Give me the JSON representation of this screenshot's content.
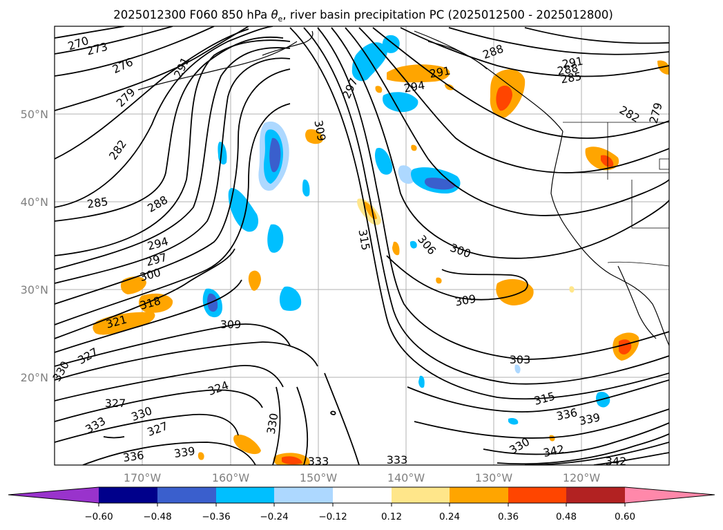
{
  "title": "2025012300 F060 850 hPa θe, river basin precipitation PC (2025012500 - 2025012800)",
  "title_parts": {
    "prefix": "2025012300 F060 850 hPa ",
    "theta": "θ",
    "sub": "e",
    "suffix": ", river basin precipitation PC (2025012500 - 2025012800)"
  },
  "lat_labels": [
    "50°N",
    "40°N",
    "30°N",
    "20°N"
  ],
  "lon_labels": [
    "170°W",
    "160°W",
    "150°W",
    "140°W",
    "130°W",
    "120°W"
  ],
  "colorbar": {
    "ticks": [
      "−0.60",
      "−0.48",
      "−0.36",
      "−0.24",
      "−0.12",
      "0.12",
      "0.24",
      "0.36",
      "0.48",
      "0.60"
    ],
    "colors": {
      "under": "#9933cc",
      "bins": [
        "#00008b",
        "#3a5fcd",
        "#00bfff",
        "#add8ff",
        "#ffffff",
        "#ffe68a",
        "#ffa500",
        "#ff4500",
        "#b22222"
      ],
      "over": "#ff88aa"
    }
  },
  "contour_labels": [
    {
      "text": "270"
    },
    {
      "text": "273"
    },
    {
      "text": "276"
    },
    {
      "text": "279"
    },
    {
      "text": "291"
    },
    {
      "text": "282"
    },
    {
      "text": "285"
    },
    {
      "text": "288"
    },
    {
      "text": "294"
    },
    {
      "text": "297"
    },
    {
      "text": "300"
    },
    {
      "text": "318"
    },
    {
      "text": "321"
    },
    {
      "text": "327"
    },
    {
      "text": "330"
    },
    {
      "text": "309"
    },
    {
      "text": "327"
    },
    {
      "text": "333"
    },
    {
      "text": "330"
    },
    {
      "text": "327"
    },
    {
      "text": "336"
    },
    {
      "text": "339"
    },
    {
      "text": "324"
    },
    {
      "text": "330"
    },
    {
      "text": "333"
    },
    {
      "text": "309"
    },
    {
      "text": "297"
    },
    {
      "text": "294"
    },
    {
      "text": "291"
    },
    {
      "text": "288"
    },
    {
      "text": "291"
    },
    {
      "text": "288"
    },
    {
      "text": "285"
    },
    {
      "text": "282"
    },
    {
      "text": "279"
    },
    {
      "text": "315"
    },
    {
      "text": "306"
    },
    {
      "text": "300"
    },
    {
      "text": "309"
    },
    {
      "text": "303"
    },
    {
      "text": "315"
    },
    {
      "text": "336"
    },
    {
      "text": "339"
    },
    {
      "text": "330"
    },
    {
      "text": "342"
    },
    {
      "text": "342"
    },
    {
      "text": "333"
    }
  ]
}
